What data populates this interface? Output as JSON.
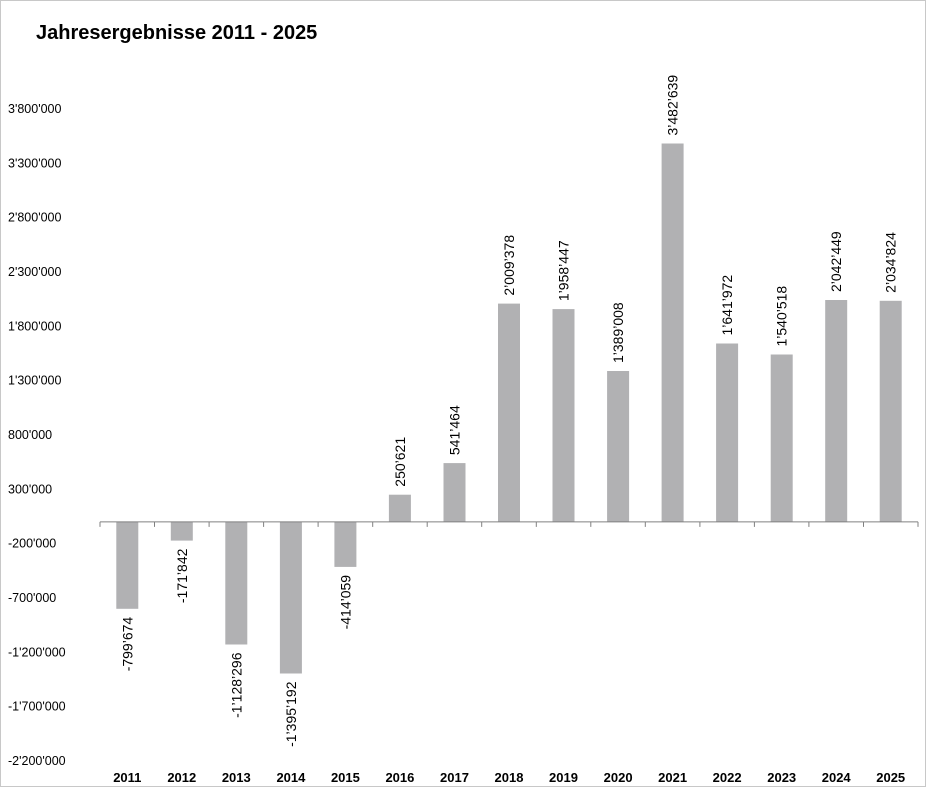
{
  "chart_data": {
    "type": "bar",
    "title": "Jahresergebnisse 2011 - 2025",
    "xlabel": "",
    "ylabel": "",
    "categories": [
      "2011",
      "2012",
      "2013",
      "2014",
      "2015",
      "2016",
      "2017",
      "2018",
      "2019",
      "2020",
      "2021",
      "2022",
      "2023",
      "2024",
      "2025"
    ],
    "values": [
      -799674,
      -171842,
      -1128296,
      -1395192,
      -414059,
      250621,
      541464,
      2009378,
      1958447,
      1389008,
      3482639,
      1641972,
      1540518,
      2042449,
      2034824
    ],
    "data_labels": [
      "-799’674",
      "-171’842",
      "-1’128’296",
      "-1’395’192",
      "-414’059",
      "250’621",
      "541’464",
      "2’009’378",
      "1’958’447",
      "1’389’008",
      "3’482’639",
      "1’641’972",
      "1’540’518",
      "2’042’449",
      "2’034’824"
    ],
    "y_ticks": [
      3800000,
      3300000,
      2800000,
      2300000,
      1800000,
      1300000,
      800000,
      300000,
      -200000,
      -700000,
      -1200000,
      -1700000,
      -2200000
    ],
    "y_tick_labels": [
      "3'800'000",
      "3'300'000",
      "2'800'000",
      "2'300'000",
      "1'800'000",
      "1'300'000",
      "800'000",
      "300'000",
      "-200'000",
      "-700'000",
      "-1'200'000",
      "-1'700'000",
      "-2'200'000"
    ],
    "ylim": [
      -2200000,
      3800000
    ],
    "grid": false,
    "legend": "none",
    "bar_color": "#b1b1b3"
  }
}
